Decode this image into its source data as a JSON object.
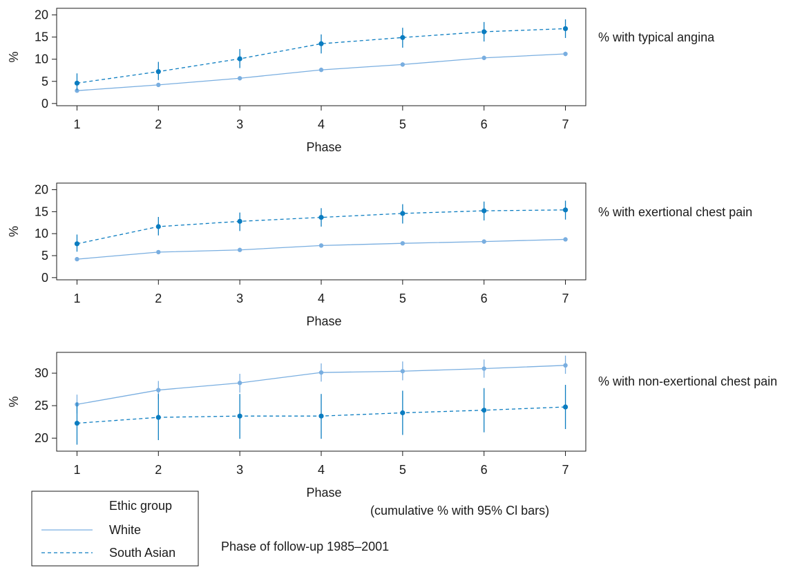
{
  "colors": {
    "white": "#79aee0",
    "south_asian": "#0a7cc0",
    "frame": "#1a1a1a"
  },
  "chart_data": [
    {
      "type": "line",
      "title": "% with typical angina",
      "xlabel": "Phase",
      "ylabel": "%",
      "x": [
        1,
        2,
        3,
        4,
        5,
        6,
        7
      ],
      "xlim": [
        0.75,
        7.25
      ],
      "ylim": [
        -0.5,
        21.5
      ],
      "yticks": [
        0,
        5,
        10,
        15,
        20
      ],
      "xticks": [
        1,
        2,
        3,
        4,
        5,
        6,
        7
      ],
      "series": [
        {
          "name": "White",
          "values": [
            2.9,
            4.2,
            5.7,
            7.6,
            8.8,
            10.3,
            11.2
          ],
          "lower": [
            2.5,
            3.8,
            5.3,
            7.1,
            8.3,
            9.8,
            10.7
          ],
          "upper": [
            3.3,
            4.6,
            6.1,
            8.1,
            9.3,
            10.8,
            11.7
          ]
        },
        {
          "name": "South Asian",
          "values": [
            4.6,
            7.2,
            10.1,
            13.5,
            14.9,
            16.2,
            16.9
          ],
          "lower": [
            3.0,
            5.3,
            8.0,
            11.3,
            12.6,
            14.0,
            14.8
          ],
          "upper": [
            6.8,
            9.4,
            12.3,
            15.6,
            17.1,
            18.4,
            19.0
          ]
        }
      ]
    },
    {
      "type": "line",
      "title": "% with exertional chest pain",
      "xlabel": "Phase",
      "ylabel": "%",
      "x": [
        1,
        2,
        3,
        4,
        5,
        6,
        7
      ],
      "xlim": [
        0.75,
        7.25
      ],
      "ylim": [
        -0.5,
        21.5
      ],
      "yticks": [
        0,
        5,
        10,
        15,
        20
      ],
      "xticks": [
        1,
        2,
        3,
        4,
        5,
        6,
        7
      ],
      "series": [
        {
          "name": "White",
          "values": [
            4.2,
            5.8,
            6.3,
            7.3,
            7.8,
            8.2,
            8.7
          ],
          "lower": [
            3.8,
            5.4,
            5.9,
            6.9,
            7.4,
            7.8,
            8.3
          ],
          "upper": [
            4.6,
            6.2,
            6.7,
            7.7,
            8.2,
            8.6,
            9.1
          ]
        },
        {
          "name": "South Asian",
          "values": [
            7.7,
            11.6,
            12.8,
            13.7,
            14.6,
            15.2,
            15.4
          ],
          "lower": [
            5.9,
            9.6,
            10.6,
            11.6,
            12.3,
            13.0,
            13.2
          ],
          "upper": [
            9.8,
            13.8,
            14.8,
            15.8,
            16.7,
            17.3,
            17.5
          ]
        }
      ]
    },
    {
      "type": "line",
      "title": "% with non-exertional chest pain",
      "xlabel": "Phase",
      "ylabel": "%",
      "x": [
        1,
        2,
        3,
        4,
        5,
        6,
        7
      ],
      "xlim": [
        0.75,
        7.25
      ],
      "ylim": [
        18.0,
        33.2
      ],
      "yticks": [
        20,
        25,
        30
      ],
      "xticks": [
        1,
        2,
        3,
        4,
        5,
        6,
        7
      ],
      "series": [
        {
          "name": "White",
          "values": [
            25.2,
            27.4,
            28.5,
            30.1,
            30.3,
            30.7,
            31.2
          ],
          "lower": [
            23.8,
            26.0,
            27.0,
            28.7,
            28.9,
            29.3,
            29.9
          ],
          "upper": [
            26.7,
            28.8,
            29.9,
            31.5,
            31.8,
            32.1,
            32.7
          ]
        },
        {
          "name": "South Asian",
          "values": [
            22.3,
            23.2,
            23.4,
            23.4,
            23.9,
            24.3,
            24.8
          ],
          "lower": [
            19.0,
            19.7,
            19.9,
            19.9,
            20.5,
            20.9,
            21.4
          ],
          "upper": [
            25.5,
            26.8,
            26.8,
            26.8,
            27.3,
            27.7,
            28.2
          ]
        }
      ]
    }
  ],
  "legend": {
    "title": "Ethic group",
    "items": [
      {
        "label": "White",
        "style": "solid"
      },
      {
        "label": "South Asian",
        "style": "dashed"
      }
    ]
  },
  "notes": {
    "ci_note": "(cumulative % with 95% Cl bars)",
    "follow_up": "Phase of follow-up 1985–2001"
  }
}
